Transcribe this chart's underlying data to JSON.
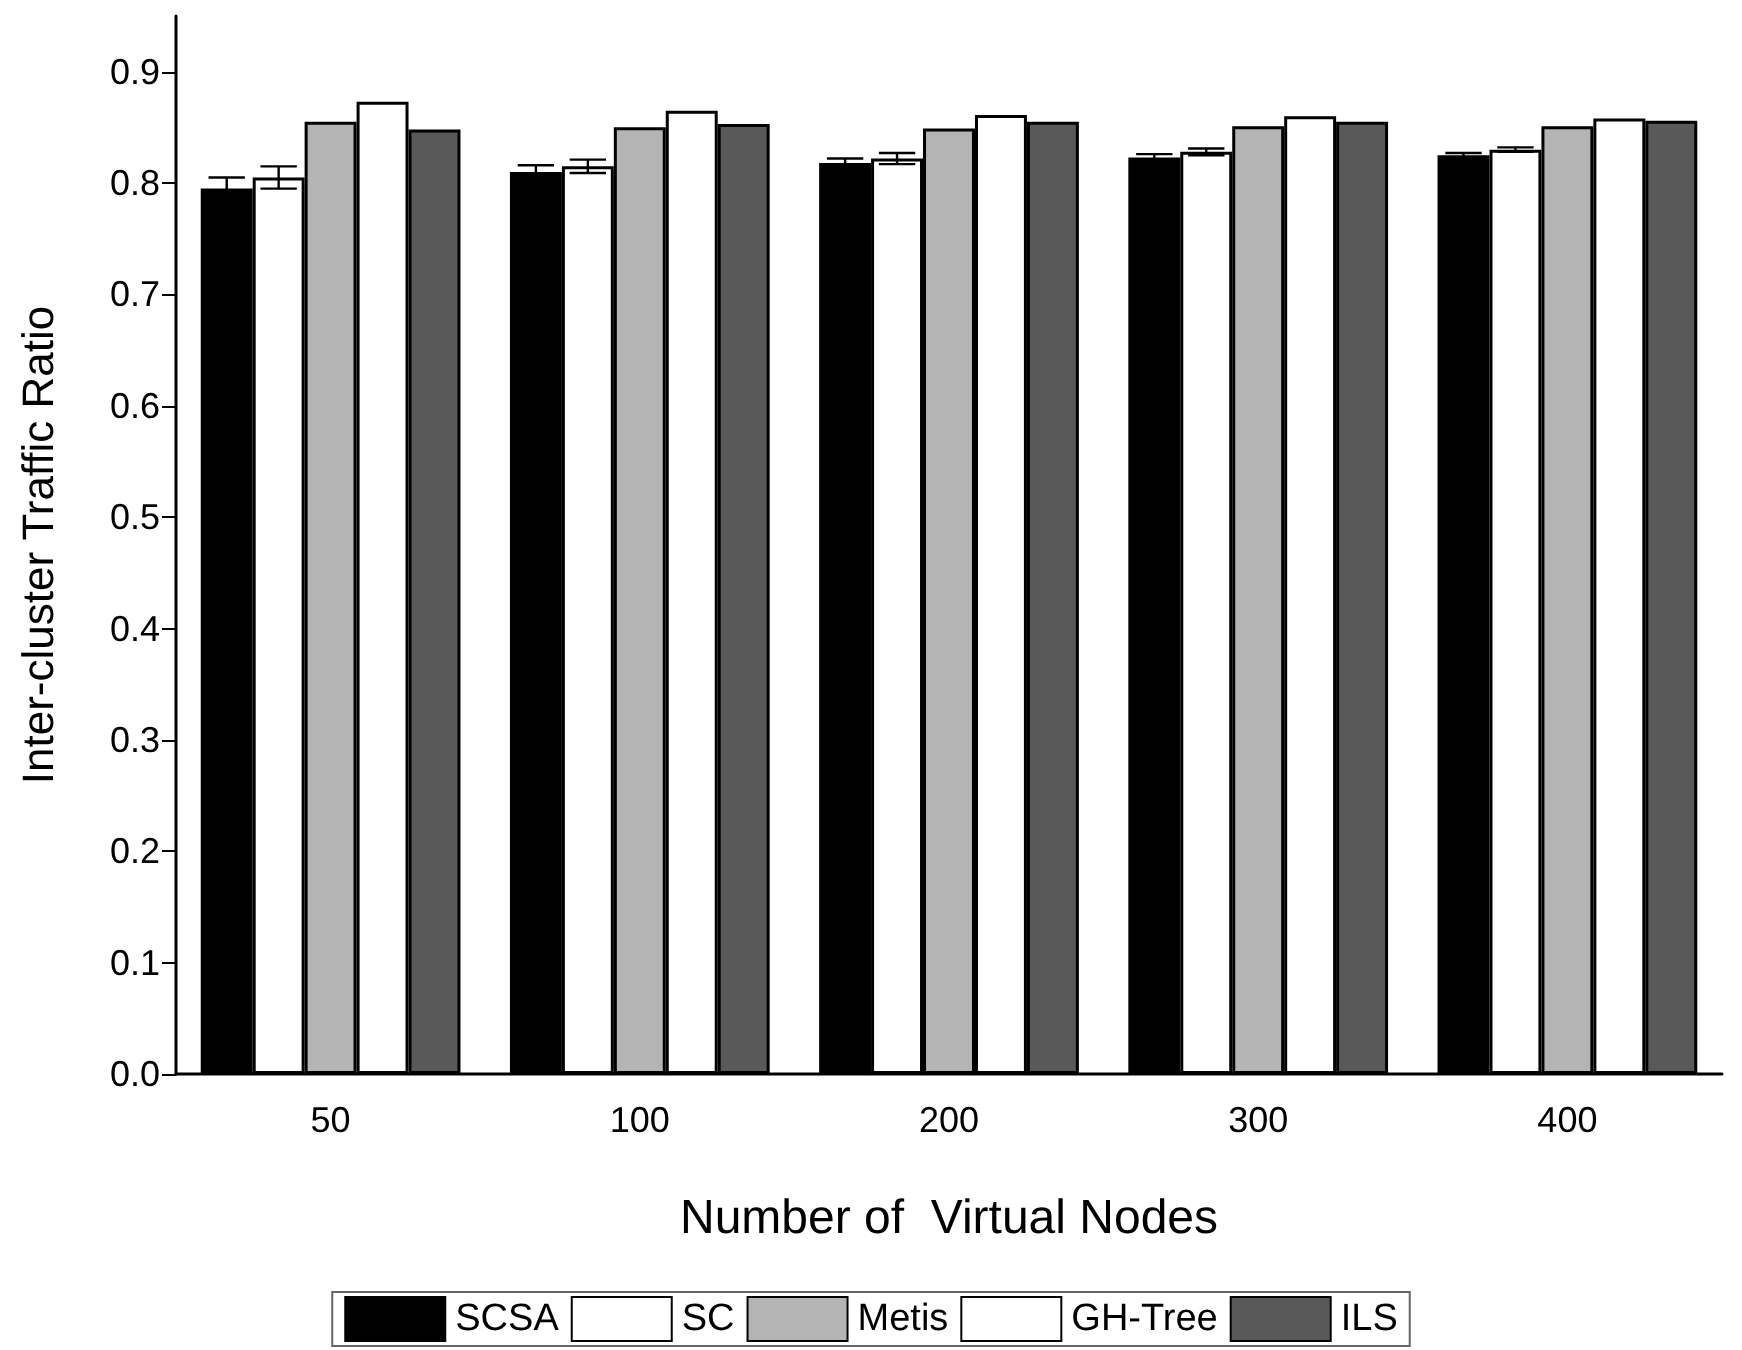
{
  "chart_data": {
    "type": "bar",
    "xlabel": "Number of  Virtual Nodes",
    "ylabel": "Inter-cluster Traffic Ratio",
    "categories": [
      "50",
      "100",
      "200",
      "300",
      "400"
    ],
    "series": [
      {
        "name": "SCSA",
        "color": "#000000",
        "values": [
          0.795,
          0.81,
          0.818,
          0.823,
          0.825
        ],
        "errors": [
          0.01,
          0.006,
          0.004,
          0.003,
          0.002
        ]
      },
      {
        "name": "SC",
        "color": "#ffffff",
        "values": [
          0.805,
          0.815,
          0.822,
          0.828,
          0.83
        ],
        "errors": [
          0.01,
          0.006,
          0.005,
          0.003,
          0.002
        ]
      },
      {
        "name": "Metis",
        "color": "#b4b4b4",
        "values": [
          0.855,
          0.85,
          0.849,
          0.851,
          0.851
        ]
      },
      {
        "name": "GH-Tree",
        "color": "#ffffff",
        "values": [
          0.873,
          0.865,
          0.861,
          0.86,
          0.858
        ]
      },
      {
        "name": "ILS",
        "color": "#595959",
        "values": [
          0.848,
          0.853,
          0.855,
          0.855,
          0.856
        ]
      }
    ],
    "ylim": [
      0,
      0.95
    ],
    "yticks": [
      {
        "value": 0,
        "label": "0.0"
      },
      0.1,
      0.2,
      0.3,
      0.4,
      0.5,
      0.6,
      0.7,
      0.8,
      0.9
    ],
    "grid": false,
    "legend": "bottom"
  }
}
